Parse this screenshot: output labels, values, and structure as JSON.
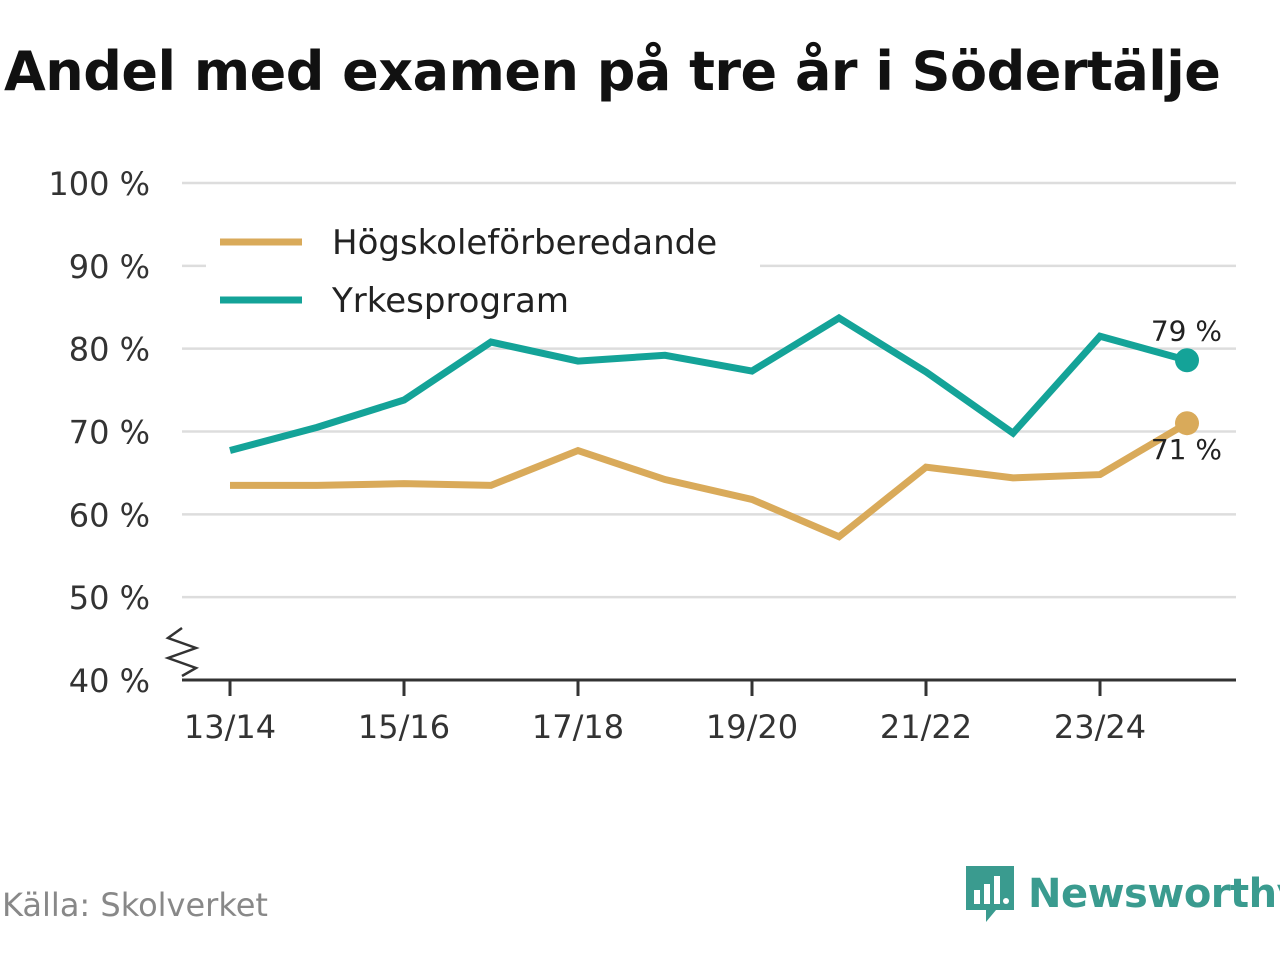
{
  "title": "Andel med examen på tre år i Södertälje",
  "source": "Källa: Skolverket",
  "brand": "Newsworthy",
  "chart_data": {
    "type": "line",
    "x": [
      "13/14",
      "14/15",
      "15/16",
      "16/17",
      "17/18",
      "18/19",
      "19/20",
      "20/21",
      "21/22",
      "22/23",
      "23/24",
      "24/25"
    ],
    "x_tick_labels": [
      "13/14",
      "15/16",
      "17/18",
      "19/20",
      "21/22",
      "23/24"
    ],
    "y_tick_labels": [
      "40 %",
      "50 %",
      "60 %",
      "70 %",
      "80 %",
      "90 %",
      "100 %"
    ],
    "ylim": [
      40,
      100
    ],
    "y_ticks": [
      40,
      50,
      60,
      70,
      80,
      90,
      100
    ],
    "series": [
      {
        "name": "Högskoleförberedande",
        "color": "#d9aa5a",
        "values": [
          63.5,
          63.5,
          63.7,
          63.5,
          67.7,
          64.2,
          61.8,
          57.3,
          65.7,
          64.4,
          64.8,
          71
        ],
        "end_label": "71 %"
      },
      {
        "name": "Yrkesprogram",
        "color": "#14a398",
        "values": [
          67.7,
          70.5,
          73.8,
          80.8,
          78.5,
          79.2,
          77.3,
          83.7,
          77.2,
          69.8,
          81.5,
          78.6
        ],
        "end_label": "79 %"
      }
    ],
    "legend_position": "top-left",
    "grid": true
  }
}
